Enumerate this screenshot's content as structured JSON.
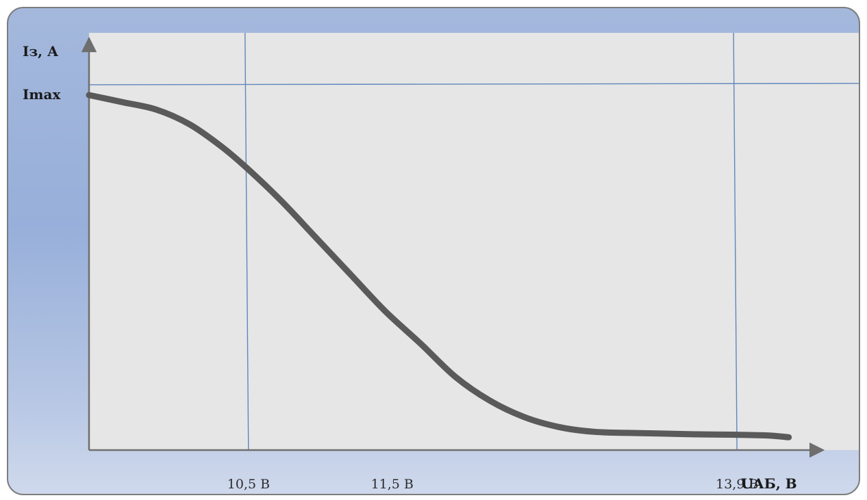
{
  "chart_data": {
    "type": "line",
    "title": "",
    "xlabel": "UАБ, В",
    "ylabel": "Iз, А",
    "x_tick_labels": [
      "10,5 В",
      "11,5 В",
      "13,9 В"
    ],
    "x_tick_values": [
      10.5,
      11.5,
      13.9
    ],
    "y_tick_labels": [
      "Imax"
    ],
    "y_tick_values": [
      1.0
    ],
    "reference_lines": {
      "vertical_x": [
        10.5,
        13.9
      ],
      "horizontal_y": [
        1.0
      ]
    },
    "xlim": [
      9.4,
      14.5
    ],
    "ylim": [
      0,
      1.14
    ],
    "grid": false,
    "series": [
      {
        "x": [
          9.4,
          9.64,
          9.87,
          10.1,
          10.32,
          10.5,
          10.74,
          10.98,
          11.22,
          11.46,
          11.71,
          11.95,
          12.19,
          12.43,
          12.67,
          12.91,
          13.15,
          13.39,
          13.64,
          13.88,
          14.12,
          14.27
        ],
        "y": [
          0.97,
          0.95,
          0.93,
          0.89,
          0.83,
          0.77,
          0.68,
          0.58,
          0.48,
          0.38,
          0.29,
          0.2,
          0.135,
          0.09,
          0.063,
          0.05,
          0.047,
          0.045,
          0.043,
          0.042,
          0.04,
          0.035
        ]
      }
    ],
    "colors": {
      "curve": "#5a5a5a",
      "reference_lines": "#5f86bb",
      "axes": "#6e6e6e",
      "plot_background": "#e6e6e6"
    }
  }
}
